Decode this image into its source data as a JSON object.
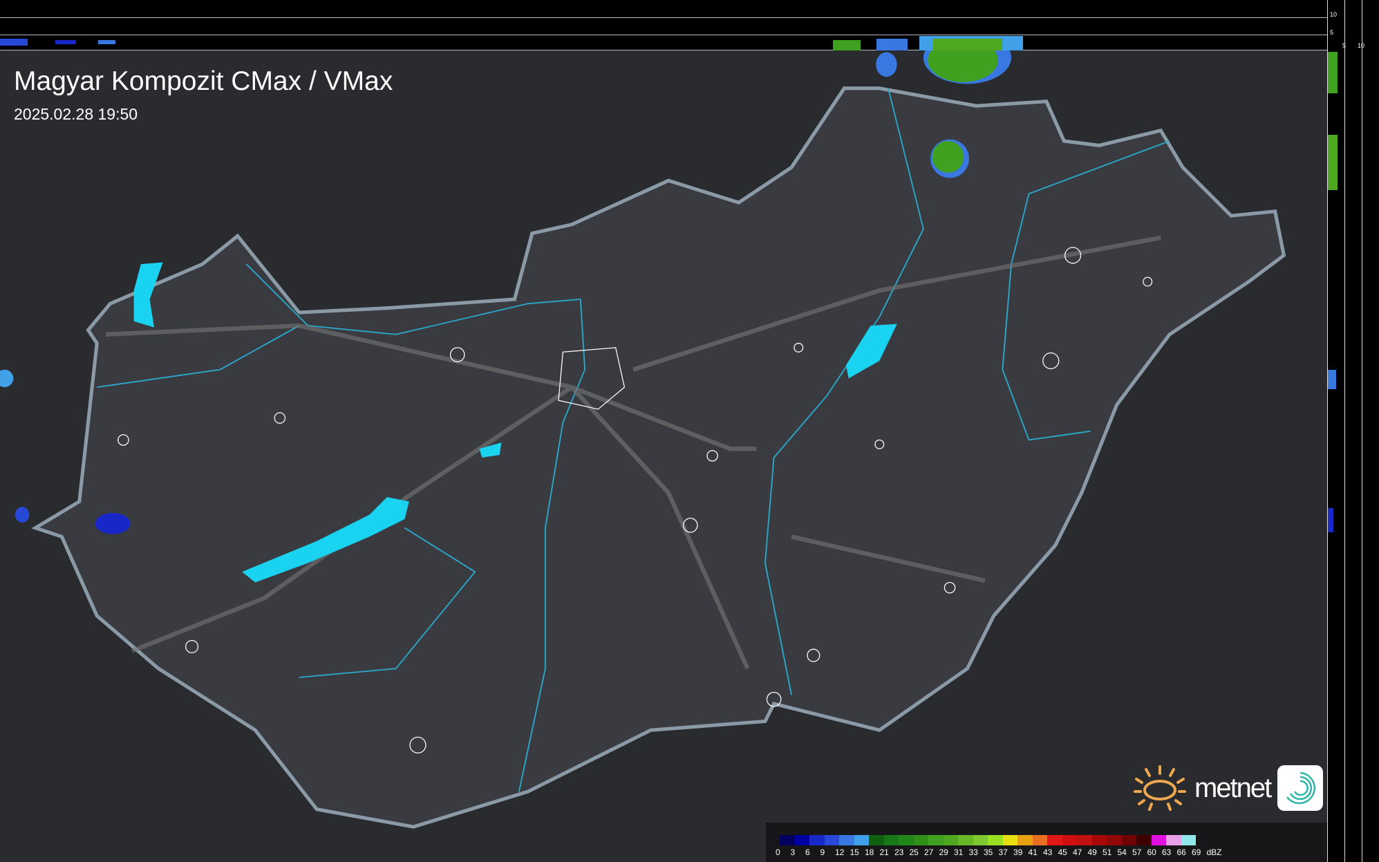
{
  "header": {
    "title": "Magyar Kompozit CMax / VMax",
    "timestamp": "2025.02.28 19:50"
  },
  "side_profile": {
    "height_ticks": [
      "10",
      "5"
    ],
    "x_ticks": [
      "5",
      "10"
    ]
  },
  "legend": {
    "unit": "dBZ",
    "labels": [
      "0",
      "3",
      "6",
      "9",
      "12",
      "15",
      "18",
      "21",
      "23",
      "25",
      "27",
      "29",
      "31",
      "33",
      "35",
      "37",
      "39",
      "41",
      "43",
      "45",
      "47",
      "49",
      "51",
      "54",
      "57",
      "60",
      "63",
      "66",
      "69"
    ],
    "colors": [
      "#000060",
      "#0000a0",
      "#1828c8",
      "#2848d8",
      "#3878e0",
      "#40a0e8",
      "#106010",
      "#187818",
      "#208818",
      "#309018",
      "#40a020",
      "#50a820",
      "#68b828",
      "#80c830",
      "#98e020",
      "#e8e010",
      "#e8a010",
      "#e87020",
      "#e01818",
      "#d01010",
      "#c01010",
      "#a80808",
      "#900808",
      "#700404",
      "#400000",
      "#e010e0",
      "#e8a0e8",
      "#90e8e8"
    ]
  },
  "branding": {
    "logo_text": "metnet"
  },
  "colors": {
    "country_fill": "#3a3b40",
    "border": "#8a9aa6",
    "water": "#19d3f0",
    "river": "#2aa6c8",
    "background": "#2a2b2e"
  }
}
